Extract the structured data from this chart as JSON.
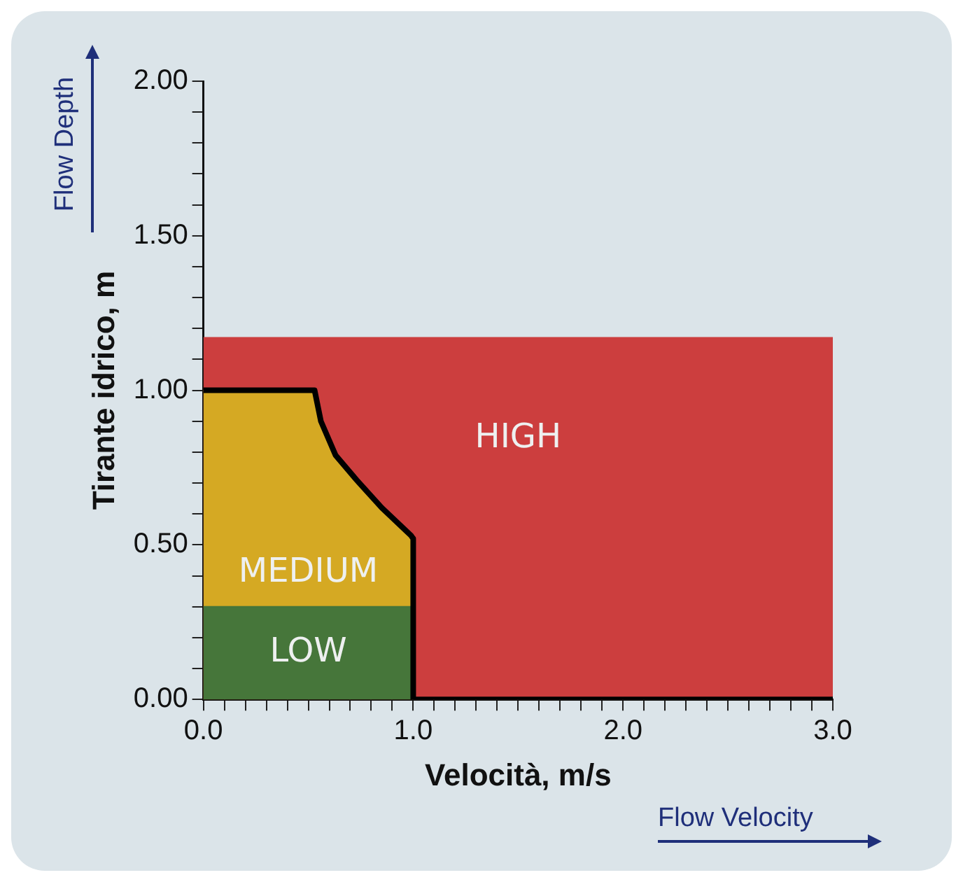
{
  "chart_data": {
    "type": "area",
    "xlabel": "Velocità, m/s",
    "ylabel": "Tirante idrico, m",
    "annotations": [
      "Flow Depth",
      "Flow Velocity"
    ],
    "xlim": [
      0,
      3
    ],
    "ylim": [
      0,
      2
    ],
    "xticks": [
      {
        "value": 0,
        "label": "0.0"
      },
      {
        "value": 0.1,
        "label": null
      },
      {
        "value": 0.2,
        "label": null
      },
      {
        "value": 0.3,
        "label": null
      },
      {
        "value": 0.4,
        "label": null
      },
      {
        "value": 0.5,
        "label": null
      },
      {
        "value": 0.6,
        "label": null
      },
      {
        "value": 0.7,
        "label": null
      },
      {
        "value": 0.8,
        "label": null
      },
      {
        "value": 0.9,
        "label": null
      },
      {
        "value": 1,
        "label": "1.0"
      },
      {
        "value": 1.1,
        "label": null
      },
      {
        "value": 1.2,
        "label": null
      },
      {
        "value": 1.3,
        "label": null
      },
      {
        "value": 1.4,
        "label": null
      },
      {
        "value": 1.5,
        "label": null
      },
      {
        "value": 1.6,
        "label": null
      },
      {
        "value": 1.7,
        "label": null
      },
      {
        "value": 1.8,
        "label": null
      },
      {
        "value": 1.9,
        "label": null
      },
      {
        "value": 2,
        "label": "2.0"
      },
      {
        "value": 2.1,
        "label": null
      },
      {
        "value": 2.2,
        "label": null
      },
      {
        "value": 2.3,
        "label": null
      },
      {
        "value": 2.4,
        "label": null
      },
      {
        "value": 2.5,
        "label": null
      },
      {
        "value": 2.6,
        "label": null
      },
      {
        "value": 2.7,
        "label": null
      },
      {
        "value": 2.8,
        "label": null
      },
      {
        "value": 2.9,
        "label": null
      },
      {
        "value": 3,
        "label": "3.0"
      }
    ],
    "yticks": [
      {
        "value": 0,
        "label": "0.00"
      },
      {
        "value": 0.1,
        "label": null
      },
      {
        "value": 0.2,
        "label": null
      },
      {
        "value": 0.3,
        "label": null
      },
      {
        "value": 0.4,
        "label": null
      },
      {
        "value": 0.5,
        "label": "0.50"
      },
      {
        "value": 0.6,
        "label": null
      },
      {
        "value": 0.7,
        "label": null
      },
      {
        "value": 0.8,
        "label": null
      },
      {
        "value": 0.9,
        "label": null
      },
      {
        "value": 1,
        "label": "1.00"
      },
      {
        "value": 1.1,
        "label": null
      },
      {
        "value": 1.2,
        "label": null
      },
      {
        "value": 1.3,
        "label": null
      },
      {
        "value": 1.4,
        "label": null
      },
      {
        "value": 1.5,
        "label": "1.50"
      },
      {
        "value": 1.6,
        "label": null
      },
      {
        "value": 1.7,
        "label": null
      },
      {
        "value": 1.8,
        "label": null
      },
      {
        "value": 1.9,
        "label": null
      },
      {
        "value": 2,
        "label": "2.00"
      }
    ],
    "grid": false,
    "legend": false,
    "series": [
      {
        "name": "HIGH",
        "color": "#cc3e3e",
        "x": [
          0,
          3
        ],
        "values": [
          1.17,
          1.17
        ]
      },
      {
        "name": "MEDIUM",
        "color": "#d5a923",
        "x": [
          0,
          0.53,
          0.56,
          0.63,
          0.73,
          0.85,
          0.99,
          1.0
        ],
        "values": [
          1.0,
          1.0,
          0.9,
          0.79,
          0.71,
          0.62,
          0.53,
          0.52
        ]
      },
      {
        "name": "LOW",
        "color": "#46763a",
        "x": [
          0,
          1.0
        ],
        "values": [
          0.3,
          0.3
        ]
      },
      {
        "type": "line",
        "color": "#000000",
        "x": [
          0,
          0.53,
          0.56,
          0.63,
          0.73,
          0.85,
          0.99,
          1.0,
          1.0,
          3.0
        ],
        "values": [
          1.0,
          1.0,
          0.9,
          0.79,
          0.71,
          0.62,
          0.53,
          0.52,
          0,
          0
        ]
      }
    ]
  }
}
